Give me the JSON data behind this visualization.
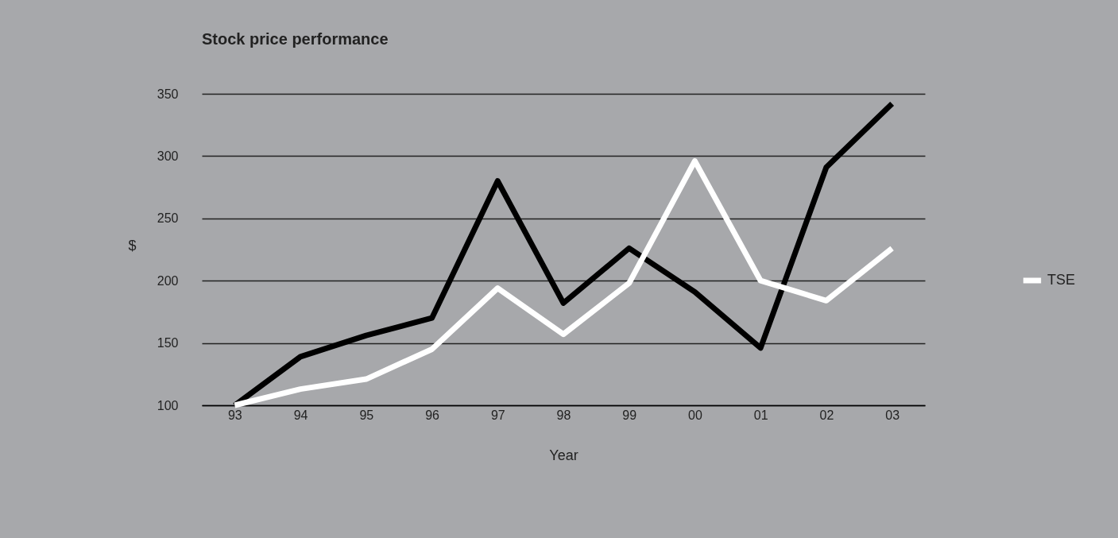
{
  "chart_data": {
    "type": "line",
    "title": "Stock price performance",
    "xlabel": "Year",
    "ylabel": "$",
    "categories": [
      "93",
      "94",
      "95",
      "96",
      "97",
      "98",
      "99",
      "00",
      "01",
      "02",
      "03"
    ],
    "series": [
      {
        "color": "#000000",
        "values": [
          100,
          139,
          156,
          170,
          280,
          182,
          226,
          191,
          146,
          291,
          342
        ]
      },
      {
        "name": "TSE",
        "color": "#ffffff",
        "values": [
          100,
          113,
          121,
          145,
          194,
          157,
          198,
          296,
          200,
          184,
          226
        ]
      }
    ],
    "ylim": [
      100,
      350
    ],
    "yticks": [
      100,
      150,
      200,
      250,
      300,
      350
    ],
    "grid": "y",
    "legend": "right",
    "marker": "none",
    "line_style": "solid"
  }
}
